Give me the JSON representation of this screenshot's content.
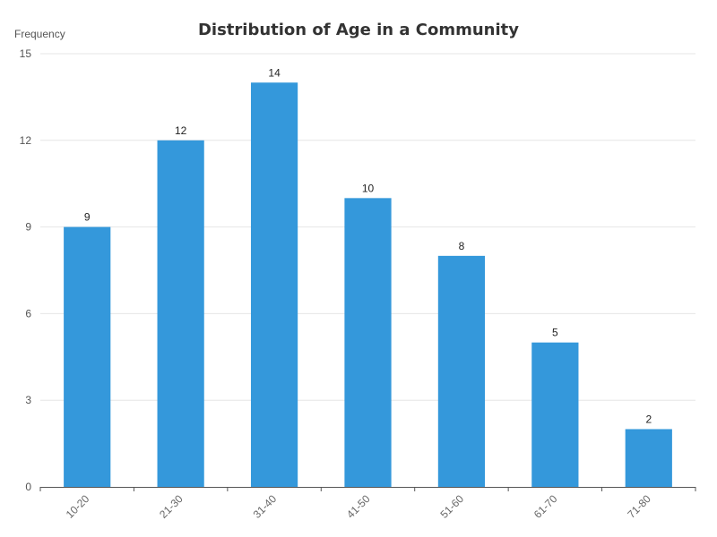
{
  "chart_data": {
    "type": "bar",
    "title": "Distribution of Age in a Community",
    "xlabel": "",
    "ylabel": "Frequency",
    "categories": [
      "10-20",
      "21-30",
      "31-40",
      "41-50",
      "51-60",
      "61-70",
      "71-80"
    ],
    "values": [
      9,
      12,
      14,
      10,
      8,
      5,
      2
    ],
    "ylim": [
      0,
      15
    ],
    "yticks": [
      0,
      3,
      6,
      9,
      12,
      15
    ],
    "grid": true,
    "bar_color": "#3498db",
    "data_labels": true
  }
}
